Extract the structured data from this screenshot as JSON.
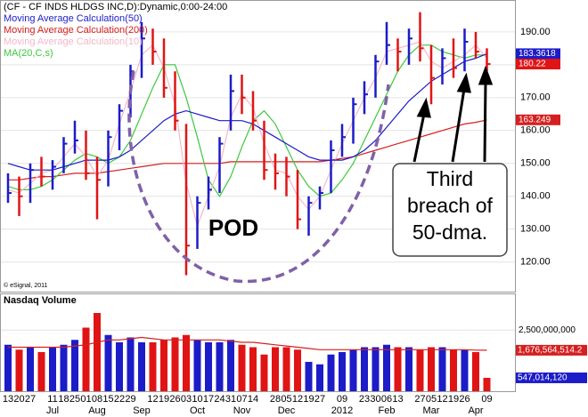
{
  "chart_data": [
    {
      "type": "ohlc",
      "title": "(CF - CF INDS HLDGS INC,D):Dynamic,0:00-24:00",
      "copyright": "© eSignal, 2011",
      "annotations": {
        "pattern": "POD",
        "callout": [
          "Third",
          "breach of",
          "50-dma."
        ]
      },
      "ylim": [
        111,
        199.7
      ],
      "yticks": [
        {
          "value": 120,
          "label": "120.00"
        },
        {
          "value": 130,
          "label": "130.00"
        },
        {
          "value": 140,
          "label": "140.00"
        },
        {
          "value": 150,
          "label": "150.00"
        },
        {
          "value": 160,
          "label": "160.00"
        },
        {
          "value": 170,
          "label": "170.00"
        },
        {
          "value": 180,
          "label": "180.00"
        },
        {
          "value": 190,
          "label": "190.00"
        }
      ],
      "grid": true,
      "up_color": "#1c1cc8",
      "down_color": "#e01414",
      "high": [
        147,
        146,
        150,
        152,
        151,
        158,
        163,
        160,
        152,
        160,
        168,
        180,
        193,
        191,
        188,
        178,
        162,
        140,
        146,
        158,
        177,
        177,
        172,
        163,
        153,
        152,
        148,
        140,
        143,
        157,
        162,
        170,
        175,
        183,
        193,
        188,
        191,
        196,
        186,
        185,
        188,
        191,
        190,
        185
      ],
      "low": [
        138,
        134,
        138,
        143,
        142,
        147,
        153,
        145,
        133,
        143,
        154,
        164,
        176,
        180,
        170,
        160,
        116,
        124,
        136,
        141,
        160,
        165,
        160,
        145,
        142,
        140,
        130,
        128,
        136,
        141,
        152,
        156,
        165,
        170,
        180,
        178,
        180,
        181,
        168,
        174,
        176,
        178,
        182,
        178
      ],
      "close": [
        141,
        140,
        148,
        146,
        149,
        156,
        157,
        147,
        145,
        158,
        166,
        178,
        188,
        184,
        173,
        163,
        125,
        138,
        142,
        156,
        172,
        170,
        163,
        148,
        147,
        146,
        133,
        138,
        141,
        154,
        158,
        168,
        171,
        181,
        186,
        184,
        188,
        185,
        176,
        182,
        179,
        187,
        184,
        180.22
      ],
      "series": [
        {
          "name": "Moving Average Calculation(50)",
          "color": "#1c1cc8",
          "values": [
            150,
            149,
            148,
            148,
            148,
            149,
            150,
            151,
            151,
            151,
            152,
            154,
            157,
            160,
            163,
            165,
            166,
            165,
            164,
            163,
            163,
            163,
            162,
            160,
            158,
            156,
            154,
            152,
            151,
            151,
            151,
            152,
            154,
            157,
            161,
            165,
            169,
            172,
            175,
            177,
            179,
            181,
            182,
            183.3618
          ]
        },
        {
          "name": "Moving Average Calculation(200)",
          "color": "#d42020",
          "values": [
            145,
            145,
            145.5,
            146,
            146,
            146.5,
            147,
            147,
            147,
            147.5,
            148,
            148.5,
            149,
            149.5,
            150,
            150,
            150,
            150,
            150,
            150,
            150.5,
            150.5,
            150.5,
            150.5,
            150.5,
            150.5,
            150.5,
            150.5,
            150.5,
            151,
            151.5,
            152,
            153,
            154,
            155,
            156,
            157,
            158,
            159,
            160,
            161,
            162,
            162.5,
            163.249
          ]
        },
        {
          "name": "Moving Average Calculation(10)",
          "color": "#f4b8c8",
          "values": [
            142,
            141,
            144,
            147,
            148,
            152,
            156,
            152,
            146,
            151,
            162,
            172,
            183,
            186,
            179,
            168,
            144,
            131,
            140,
            149,
            164,
            171,
            167,
            156,
            148,
            147,
            140,
            136,
            140,
            148,
            156,
            163,
            170,
            176,
            184,
            185,
            186,
            187,
            181,
            179,
            181,
            183,
            186,
            182
          ]
        },
        {
          "name": "MA(20,C,s)",
          "color": "#3cc83c",
          "values": [
            143,
            142,
            142,
            143,
            145,
            148,
            151,
            153,
            152,
            150,
            152,
            157,
            165,
            173,
            180,
            180,
            170,
            158,
            145,
            140,
            146,
            155,
            163,
            166,
            162,
            155,
            148,
            143,
            140,
            141,
            145,
            150,
            157,
            164,
            171,
            178,
            183,
            186,
            186,
            184,
            183,
            182,
            183,
            183
          ]
        }
      ]
    },
    {
      "type": "volume",
      "title": "Nasdaq Volume",
      "ylim": [
        0,
        4000000000
      ],
      "yticks": [
        {
          "value": 2500000000,
          "label": "2,500,000,000"
        }
      ],
      "categories": [
        "13",
        "20",
        "27",
        null,
        "11",
        "18",
        "25",
        "01",
        "08",
        "15",
        "22",
        "29",
        null,
        "12",
        "19",
        "26",
        "03",
        "10",
        "17",
        "24",
        "31",
        "07",
        "14",
        null,
        "28",
        "05",
        "12",
        "19",
        "27",
        null,
        "09",
        null,
        "23",
        "30",
        "06",
        "13",
        null,
        "27",
        "05",
        "12",
        "19",
        "26",
        null,
        "09"
      ],
      "months": [
        null,
        null,
        null,
        null,
        "Jul",
        null,
        null,
        null,
        "Aug",
        null,
        null,
        null,
        "Sep",
        null,
        null,
        null,
        null,
        "Oct",
        null,
        null,
        null,
        "Nov",
        null,
        null,
        null,
        "Dec",
        null,
        null,
        null,
        null,
        "2012",
        null,
        null,
        null,
        "Feb",
        null,
        null,
        null,
        "Mar",
        null,
        null,
        null,
        "Apr",
        null
      ],
      "series": [
        {
          "name": "Volume",
          "values": [
            1900000000,
            1700000000,
            1800000000,
            1600000000,
            1800000000,
            1900000000,
            2100000000,
            2600000000,
            3200000000,
            2300000000,
            2000000000,
            2200000000,
            2000000000,
            2000000000,
            2100000000,
            2200000000,
            2300000000,
            2100000000,
            2000000000,
            2000000000,
            2100000000,
            1900000000,
            1800000000,
            1500000000,
            1800000000,
            1800000000,
            1700000000,
            1200000000,
            1100000000,
            1500000000,
            1600000000,
            1700000000,
            1800000000,
            1800000000,
            1900000000,
            1800000000,
            1800000000,
            1700000000,
            1800000000,
            1800000000,
            1700000000,
            1700000000,
            1600000000,
            547014120
          ],
          "value_labels": [
            null,
            null,
            null,
            null,
            null,
            null,
            null,
            null,
            null,
            null,
            null,
            null,
            null,
            null,
            null,
            null,
            null,
            null,
            null,
            null,
            null,
            null,
            null,
            null,
            null,
            null,
            null,
            null,
            null,
            null,
            null,
            null,
            null,
            null,
            null,
            null,
            null,
            null,
            null,
            null,
            null,
            null,
            null,
            "547,014,120"
          ]
        },
        {
          "name": "Volume MA",
          "color": "#d42020",
          "values": [
            1800000000,
            1800000000,
            1800000000,
            1800000000,
            1800000000,
            1800000000,
            1850000000,
            1900000000,
            2000000000,
            2100000000,
            2100000000,
            2150000000,
            2200000000,
            2150000000,
            2100000000,
            2100000000,
            2100000000,
            2100000000,
            2100000000,
            2100000000,
            2050000000,
            2000000000,
            2000000000,
            1950000000,
            1900000000,
            1850000000,
            1800000000,
            1750000000,
            1700000000,
            1700000000,
            1700000000,
            1700000000,
            1700000000,
            1700000000,
            1700000000,
            1700000000,
            1700000000,
            1700000000,
            1700000000,
            1700000000,
            1700000000,
            1700000000,
            1680000000,
            1676564514.2
          ],
          "value_labels": [
            null,
            null,
            null,
            null,
            null,
            null,
            null,
            null,
            null,
            null,
            null,
            null,
            null,
            null,
            null,
            null,
            null,
            null,
            null,
            null,
            null,
            null,
            null,
            null,
            null,
            null,
            null,
            null,
            null,
            null,
            null,
            null,
            null,
            null,
            null,
            null,
            null,
            null,
            null,
            null,
            null,
            null,
            null,
            "1,676,564,514.2"
          ]
        }
      ]
    }
  ]
}
